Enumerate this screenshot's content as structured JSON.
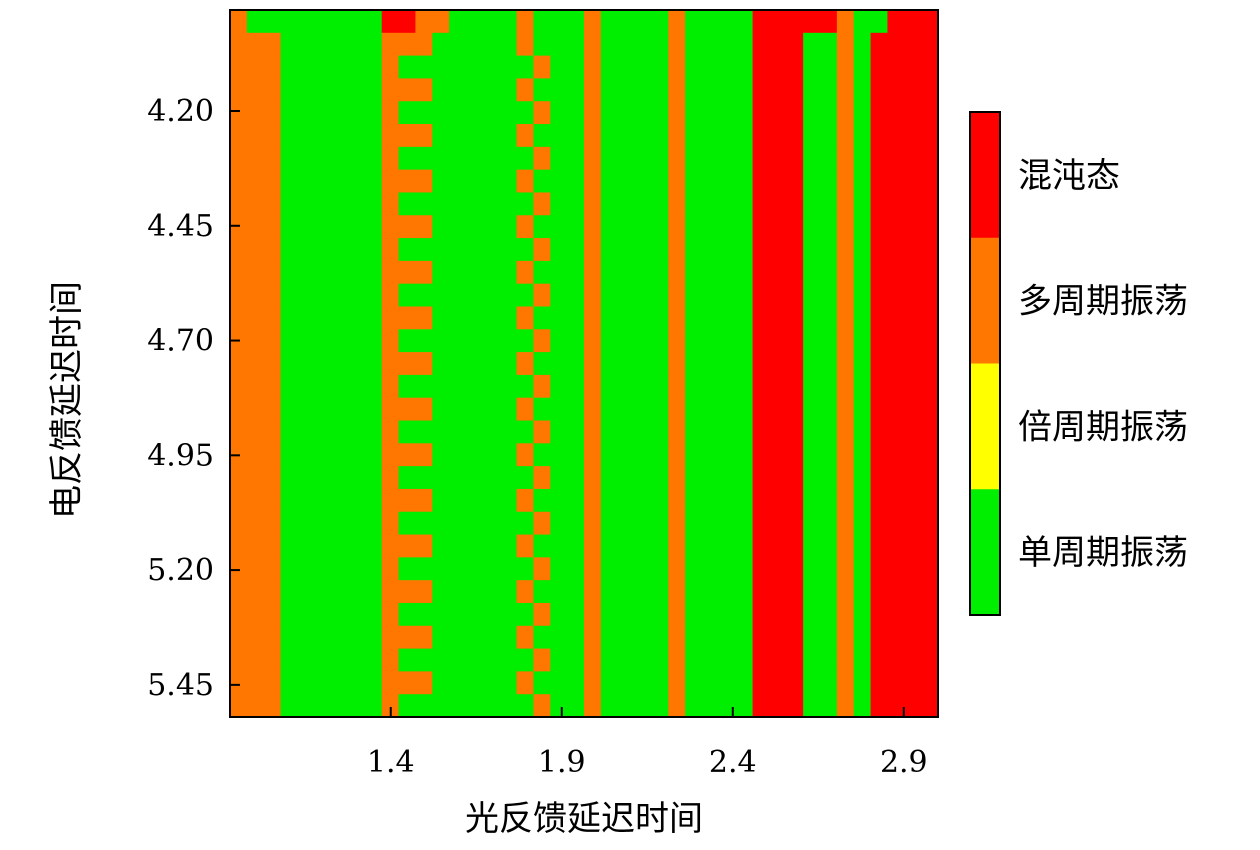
{
  "chart_data": {
    "type": "heatmap",
    "xlabel": "光反馈延迟时间",
    "ylabel": "电反馈延迟时间",
    "x_ticks": [
      "1.4",
      "1.9",
      "2.4",
      "2.9"
    ],
    "y_ticks": [
      "4.20",
      "4.45",
      "4.70",
      "4.95",
      "5.20",
      "5.45"
    ],
    "x_tick_values": [
      1.4,
      1.9,
      2.4,
      2.9
    ],
    "y_tick_values": [
      4.2,
      4.45,
      4.7,
      4.95,
      5.2,
      5.45
    ],
    "xlim": [
      0.93,
      3.0
    ],
    "ylim": [
      3.98,
      5.52
    ],
    "y_inverted": true,
    "grid": "off",
    "legend_position": "right",
    "classes": [
      {
        "code": 0,
        "label": "单周期振荡",
        "color": "#00ee00"
      },
      {
        "code": 1,
        "label": "倍周期振荡",
        "color": "#ffff00"
      },
      {
        "code": 2,
        "label": "多周期振荡",
        "color": "#ff7700"
      },
      {
        "code": 3,
        "label": "混沌态",
        "color": "#ff0000"
      }
    ],
    "grid_cols": 42,
    "grid_rows": 31,
    "matrix_rows": [
      "200000000332200002000200002000033333200333",
      "222000000222000002000200002000033300203333",
      "222000000200000000200200002000033300203333",
      "222000000222000002000200002000033300203333",
      "222000000200000000200200002000033300203333",
      "222000000222000002000200002000033300203333",
      "222000000200000000200200002000033300203333",
      "222000000222000002000200002000033300203333",
      "222000000200000000200200002000033300203333",
      "222000000222000002000200002000033300203333",
      "222000000200000000200200002000033300203333",
      "222000000222000002000200002000033300203333",
      "222000000200000000200200002000033300203333",
      "222000000222000002000200002000033300203333",
      "222000000200000000200200002000033300203333",
      "222000000222000002000200002000033300203333",
      "222000000200000000200200002000033300203333",
      "222000000222000002000200002000033300203333",
      "222000000200000000200200002000033300203333",
      "222000000222000002000200002000033300203333",
      "222000000200000000200200002000033300203333",
      "222000000222000002000200002000033300203333",
      "222000000200000000200200002000033300203333",
      "222000000222000002000200002000033300203333",
      "222000000200000000200200002000033300203333",
      "222000000222000002000200002000033300203333",
      "222000000200000000200200002000033300203333",
      "222000000222000002000200002000033300203333",
      "222000000200000000200200002000033300203333",
      "222000000222000002000200002000033300203333",
      "222000000200000000200200002000033300203333"
    ]
  }
}
